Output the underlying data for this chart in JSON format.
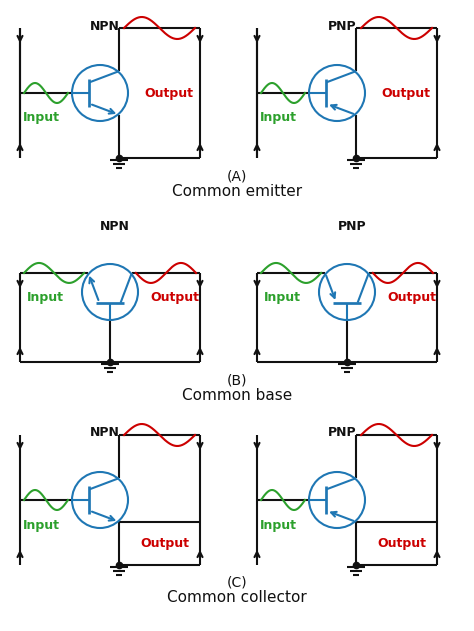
{
  "green": "#2ca02c",
  "red": "#cc0000",
  "blue": "#1f77b4",
  "black": "#111111",
  "bg": "#ffffff",
  "lw": 1.5,
  "npn_label": "NPN",
  "pnp_label": "PNP",
  "input_label": "Input",
  "output_label": "Output",
  "label_A": "(A)",
  "label_B": "(B)",
  "label_C": "(C)",
  "title_A": "Common emitter",
  "title_B": "Common base",
  "title_C": "Common collector"
}
